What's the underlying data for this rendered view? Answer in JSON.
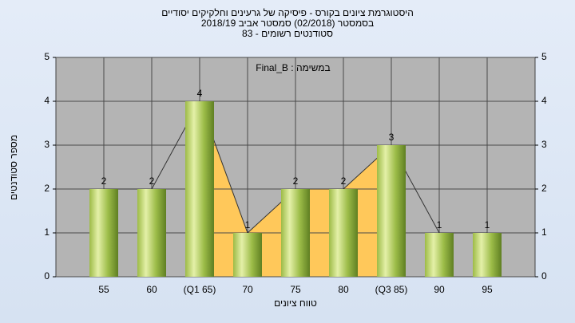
{
  "chart_data": {
    "type": "bar",
    "title": "היסטוגרמת ציונים בקורס - פיסיקה של גרעינים וחלקיקים יסודיים",
    "subtitle": "בסמסטר  (02/2018)  סמסטר אביב 2018/19",
    "subtitle2": "סטודנטים רשומים - 83",
    "annotation": "במשימה : Final_B",
    "x_label": "טווח ציונים",
    "y_label": "מספר סטודנטים",
    "categories": [
      "55",
      "60",
      "(Q1 65)",
      "70",
      "75",
      "80",
      "(Q3 85)",
      "90",
      "95"
    ],
    "values": [
      2,
      2,
      4,
      1,
      2,
      2,
      3,
      1,
      1
    ],
    "color": "#8fb040",
    "quartile_range": [
      "(Q1 65)",
      "(Q3 85)"
    ],
    "band_color": "#ffc85a",
    "ylim": [
      0,
      5
    ],
    "yticks": [
      0,
      1,
      2,
      3,
      4,
      5
    ],
    "y2lim": [
      0,
      5
    ],
    "y2ticks": [
      0,
      1,
      2,
      3,
      4,
      5
    ],
    "grid": true
  }
}
